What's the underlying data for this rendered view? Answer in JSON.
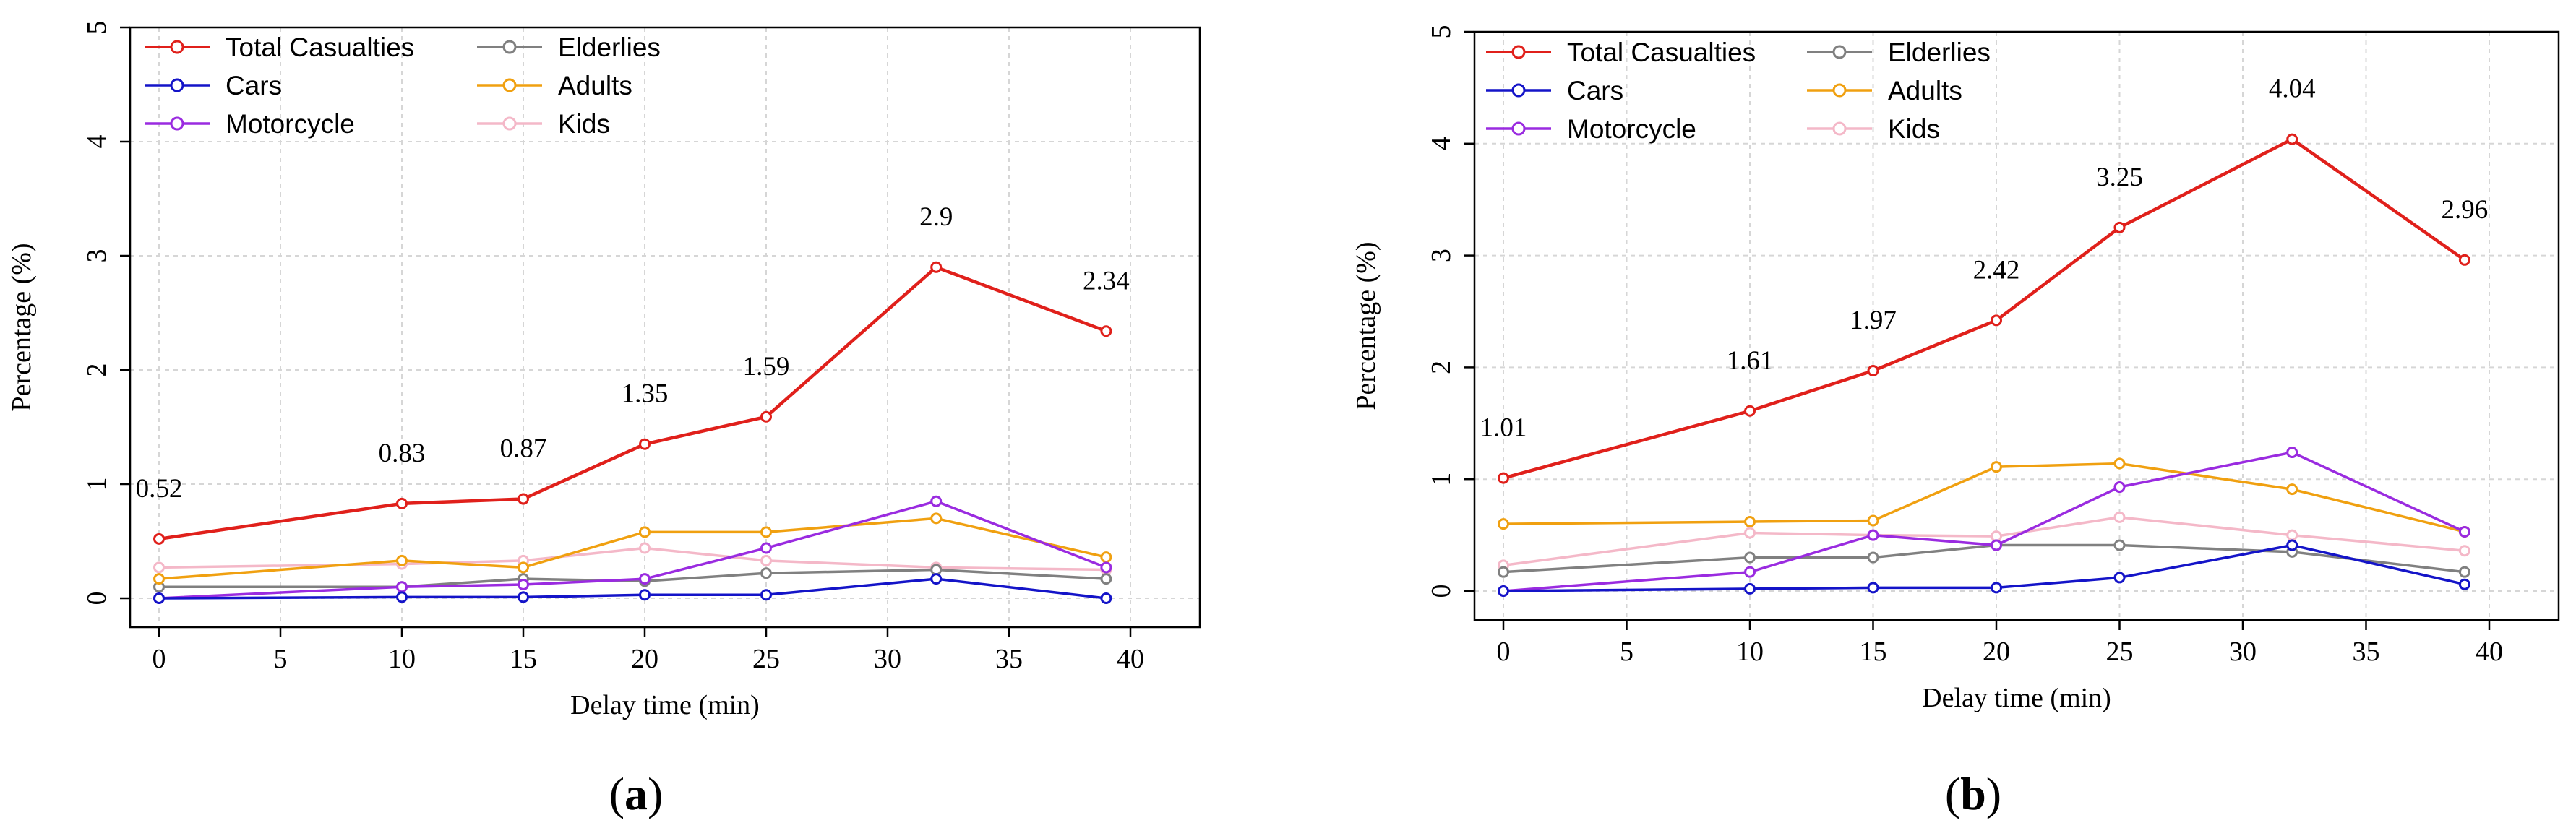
{
  "colors": {
    "Total Casualties": "#e0201b",
    "Cars": "#1414c8",
    "Motorcycle": "#9a2be0",
    "Elderlies": "#808080",
    "Adults": "#f0a010",
    "Kids": "#f4b8c8",
    "grid": "#d6d6d6"
  },
  "chart_data": [
    {
      "type": "line",
      "panel_label": {
        "open": "(",
        "letter": "a",
        "close": ")"
      },
      "xlabel": "Delay time (min)",
      "ylabel": "Percentage (%)",
      "xlim": [
        0,
        40
      ],
      "ylim": [
        0,
        5
      ],
      "xticks": [
        0,
        5,
        10,
        15,
        20,
        25,
        30,
        35,
        40
      ],
      "yticks": [
        0,
        1,
        2,
        3,
        4,
        5
      ],
      "grid": true,
      "legend_position": "top-left",
      "x": [
        0,
        10,
        15,
        20,
        25,
        32,
        39
      ],
      "series": [
        {
          "name": "Total Casualties",
          "values": [
            0.52,
            0.83,
            0.87,
            1.35,
            1.59,
            2.9,
            2.34
          ],
          "labels": [
            "0.52",
            "0.83",
            "0.87",
            "1.35",
            "1.59",
            "2.9",
            "2.34"
          ]
        },
        {
          "name": "Cars",
          "values": [
            0.0,
            0.01,
            0.01,
            0.03,
            0.03,
            0.17,
            0.0
          ]
        },
        {
          "name": "Motorcycle",
          "values": [
            0.0,
            0.1,
            0.12,
            0.17,
            0.44,
            0.85,
            0.27
          ]
        },
        {
          "name": "Elderlies",
          "values": [
            0.1,
            0.1,
            0.17,
            0.15,
            0.22,
            0.25,
            0.17
          ]
        },
        {
          "name": "Adults",
          "values": [
            0.17,
            0.33,
            0.27,
            0.58,
            0.58,
            0.7,
            0.36
          ]
        },
        {
          "name": "Kids",
          "values": [
            0.27,
            0.3,
            0.33,
            0.44,
            0.33,
            0.27,
            0.25
          ]
        }
      ]
    },
    {
      "type": "line",
      "panel_label": {
        "open": "(",
        "letter": "b",
        "close": ")"
      },
      "xlabel": "Delay time (min)",
      "ylabel": "Percentage (%)",
      "xlim": [
        0,
        40
      ],
      "ylim": [
        0,
        5
      ],
      "xticks": [
        0,
        5,
        10,
        15,
        20,
        25,
        30,
        35,
        40
      ],
      "yticks": [
        0,
        1,
        2,
        3,
        4,
        5
      ],
      "grid": true,
      "legend_position": "top-left",
      "x": [
        0,
        10,
        15,
        20,
        25,
        32,
        39
      ],
      "series": [
        {
          "name": "Total Casualties",
          "values": [
            1.01,
            1.61,
            1.97,
            2.42,
            3.25,
            4.04,
            2.96
          ],
          "labels": [
            "1.01",
            "1.61",
            "1.97",
            "2.42",
            "3.25",
            "4.04",
            "2.96"
          ]
        },
        {
          "name": "Cars",
          "values": [
            0.0,
            0.02,
            0.03,
            0.03,
            0.12,
            0.41,
            0.06
          ]
        },
        {
          "name": "Motorcycle",
          "values": [
            0.0,
            0.17,
            0.5,
            0.41,
            0.93,
            1.24,
            0.53
          ]
        },
        {
          "name": "Elderlies",
          "values": [
            0.17,
            0.3,
            0.3,
            0.41,
            0.41,
            0.35,
            0.17
          ]
        },
        {
          "name": "Adults",
          "values": [
            0.6,
            0.62,
            0.63,
            1.11,
            1.14,
            0.91,
            0.53
          ]
        },
        {
          "name": "Kids",
          "values": [
            0.23,
            0.52,
            0.5,
            0.49,
            0.66,
            0.5,
            0.36
          ]
        }
      ]
    }
  ]
}
